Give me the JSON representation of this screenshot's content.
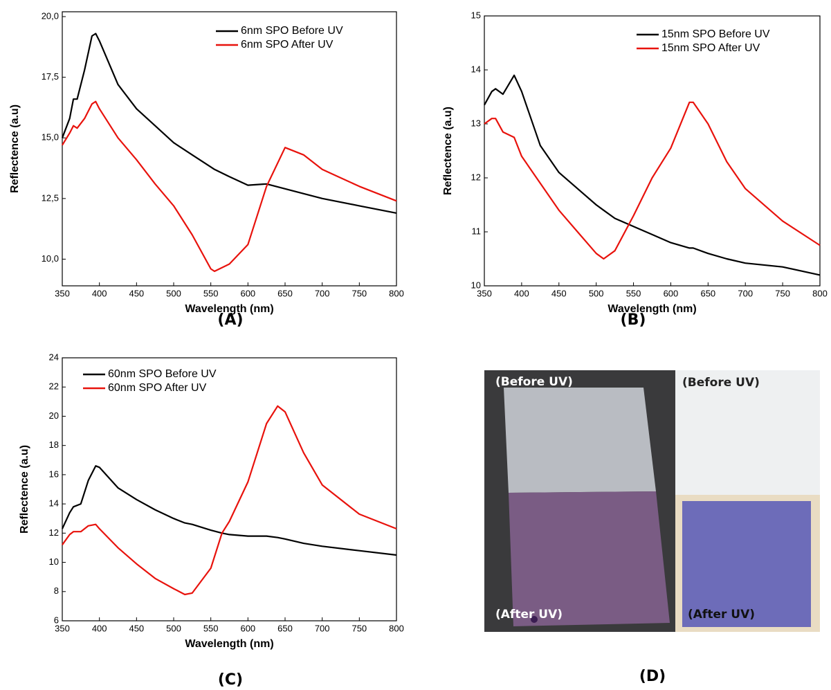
{
  "chart_data": [
    {
      "type": "line",
      "label": "(A)",
      "x_label": "Wavelength (nm)",
      "y_label": "Reflectence (a.u)",
      "x": [
        350,
        360,
        365,
        370,
        380,
        390,
        395,
        400,
        425,
        450,
        475,
        500,
        525,
        550,
        555,
        575,
        600,
        625,
        650,
        675,
        700,
        750,
        800
      ],
      "series": [
        {
          "name": "6nm SPO Before UV",
          "color": "#000000",
          "values": [
            15.0,
            15.8,
            16.6,
            16.6,
            17.8,
            19.2,
            19.3,
            19.0,
            17.2,
            16.2,
            15.5,
            14.8,
            14.3,
            13.8,
            13.7,
            13.4,
            13.05,
            13.1,
            12.9,
            12.7,
            12.5,
            12.2,
            11.9
          ]
        },
        {
          "name": "6nm SPO After UV",
          "color": "#e8120c",
          "values": [
            14.7,
            15.2,
            15.5,
            15.4,
            15.8,
            16.4,
            16.5,
            16.2,
            15.0,
            14.1,
            13.1,
            12.2,
            11.0,
            9.6,
            9.5,
            9.8,
            10.6,
            13.0,
            14.6,
            14.3,
            13.7,
            13.0,
            12.4
          ]
        }
      ],
      "xlim": [
        350,
        800
      ],
      "xticks": [
        350,
        400,
        450,
        500,
        550,
        600,
        650,
        700,
        750,
        800
      ],
      "ylim": [
        8.9,
        20.2
      ],
      "yticks": [
        {
          "value": 10,
          "label": "10,0"
        },
        {
          "value": 12.5,
          "label": "12,5"
        },
        {
          "value": 15,
          "label": "15,0"
        },
        {
          "value": 17.5,
          "label": "17,5"
        },
        {
          "value": 20,
          "label": "20,0"
        }
      ]
    },
    {
      "type": "line",
      "label": "(B)",
      "x_label": "Wavelength (nm)",
      "y_label": "Reflectence (a.u)",
      "x": [
        350,
        360,
        365,
        375,
        390,
        400,
        425,
        450,
        475,
        500,
        510,
        525,
        550,
        575,
        600,
        625,
        630,
        650,
        675,
        700,
        750,
        800
      ],
      "series": [
        {
          "name": "15nm SPO Before UV",
          "color": "#000000",
          "values": [
            13.35,
            13.6,
            13.65,
            13.55,
            13.9,
            13.6,
            12.6,
            12.1,
            11.8,
            11.5,
            11.4,
            11.25,
            11.1,
            10.95,
            10.8,
            10.7,
            10.7,
            10.6,
            10.5,
            10.42,
            10.35,
            10.2
          ]
        },
        {
          "name": "15nm SPO After UV",
          "color": "#e8120c",
          "values": [
            13.0,
            13.1,
            13.1,
            12.85,
            12.75,
            12.4,
            11.9,
            11.4,
            11.0,
            10.6,
            10.5,
            10.65,
            11.3,
            12.0,
            12.55,
            13.4,
            13.4,
            13.0,
            12.3,
            11.8,
            11.2,
            10.75
          ]
        }
      ],
      "xlim": [
        350,
        800
      ],
      "xticks": [
        350,
        400,
        450,
        500,
        550,
        600,
        650,
        700,
        750,
        800
      ],
      "ylim": [
        10,
        15
      ],
      "yticks": [
        10,
        11,
        12,
        13,
        14,
        15
      ]
    },
    {
      "type": "line",
      "label": "(C)",
      "x_label": "Wavelength (nm)",
      "y_label": "Reflectence (a.u)",
      "x": [
        350,
        360,
        365,
        375,
        385,
        395,
        400,
        425,
        450,
        475,
        500,
        515,
        525,
        550,
        565,
        575,
        600,
        625,
        640,
        650,
        675,
        700,
        750,
        800
      ],
      "series": [
        {
          "name": "60nm SPO Before UV",
          "color": "#000000",
          "values": [
            12.3,
            13.4,
            13.8,
            14.0,
            15.6,
            16.6,
            16.5,
            15.1,
            14.3,
            13.6,
            13.0,
            12.7,
            12.6,
            12.2,
            12.0,
            11.9,
            11.8,
            11.8,
            11.7,
            11.6,
            11.3,
            11.1,
            10.8,
            10.5
          ]
        },
        {
          "name": "60nm SPO After UV",
          "color": "#e8120c",
          "values": [
            11.2,
            11.9,
            12.1,
            12.1,
            12.5,
            12.6,
            12.3,
            11.0,
            9.9,
            8.9,
            8.2,
            7.8,
            7.9,
            9.6,
            12.0,
            12.8,
            15.5,
            19.5,
            20.7,
            20.3,
            17.5,
            15.3,
            13.3,
            12.3
          ]
        }
      ],
      "xlim": [
        350,
        800
      ],
      "xticks": [
        350,
        400,
        450,
        500,
        550,
        600,
        650,
        700,
        750,
        800
      ],
      "ylim": [
        6,
        24
      ],
      "yticks": [
        6,
        8,
        10,
        12,
        14,
        16,
        18,
        20,
        22,
        24
      ]
    }
  ],
  "photo": {
    "label": "(D)",
    "annotations": [
      "(Before UV)",
      "(After UV)",
      "(Before UV)",
      "(After UV)"
    ]
  }
}
